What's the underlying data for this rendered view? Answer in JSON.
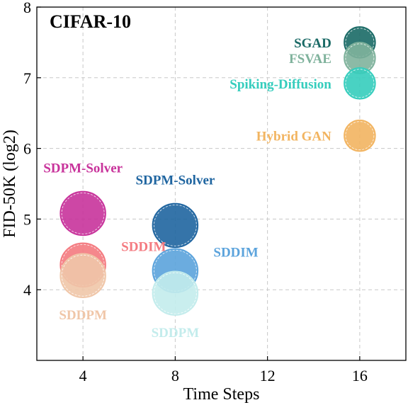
{
  "chart_data": {
    "type": "scatter",
    "title": "CIFAR-10",
    "xlabel": "Time Steps",
    "ylabel": "FID-50K (log2)",
    "xlim": [
      2,
      18
    ],
    "ylim": [
      3,
      8
    ],
    "xticks": [
      4,
      8,
      12,
      16
    ],
    "yticks": [
      4,
      5,
      6,
      7,
      8
    ],
    "grid": true,
    "points": [
      {
        "label": "SDPM-Solver",
        "x": 4,
        "y": 5.08,
        "color": "#c8339b",
        "label_anchor": "above"
      },
      {
        "label": "SDDIM",
        "x": 4,
        "y": 4.35,
        "color": "#f47a80",
        "label_anchor": "right"
      },
      {
        "label": "SDDPM",
        "x": 4,
        "y": 4.2,
        "color": "#f0c6a8",
        "label_anchor": "below"
      },
      {
        "label": "SDPM-Solver",
        "x": 8,
        "y": 4.91,
        "color": "#1f65a0",
        "label_anchor": "above"
      },
      {
        "label": "SDDIM",
        "x": 8,
        "y": 4.27,
        "color": "#5ba3dc",
        "label_anchor": "right"
      },
      {
        "label": "SDDPM",
        "x": 8,
        "y": 3.95,
        "color": "#c3ecec",
        "label_anchor": "below"
      },
      {
        "label": "SGAD",
        "x": 16,
        "y": 7.5,
        "color": "#1a6a66",
        "label_anchor": "left"
      },
      {
        "label": "FSVAE",
        "x": 16,
        "y": 7.28,
        "color": "#7fb29c",
        "label_anchor": "left"
      },
      {
        "label": "Spiking-Diffusion",
        "x": 16,
        "y": 6.92,
        "color": "#35cdbd",
        "label_anchor": "left"
      },
      {
        "label": "Hybrid GAN",
        "x": 16,
        "y": 6.18,
        "color": "#f2b460",
        "label_anchor": "left"
      }
    ]
  }
}
